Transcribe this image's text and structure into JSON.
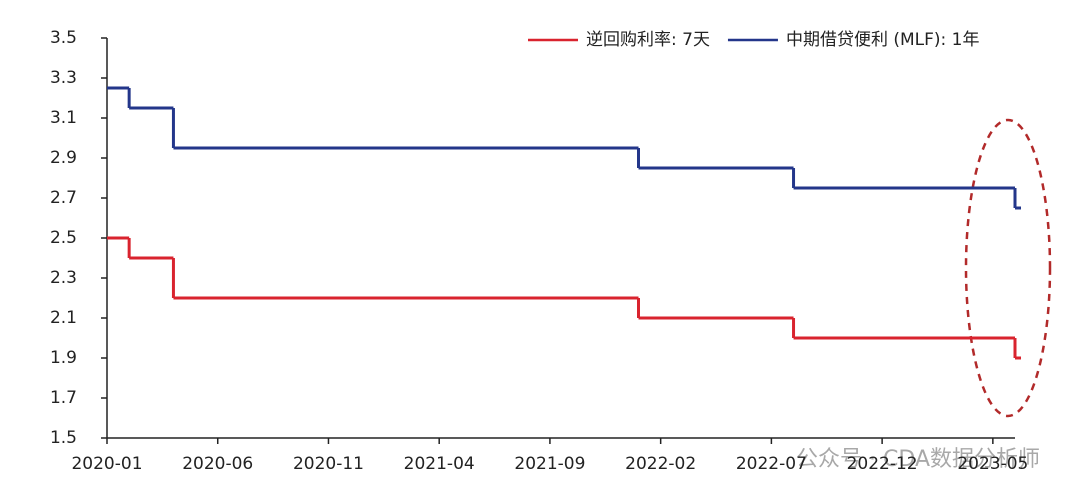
{
  "chart_data": {
    "type": "step",
    "x": [
      "2020-01",
      "2020-02",
      "2020-04",
      "2022-01",
      "2022-08",
      "2023-06"
    ],
    "series": [
      {
        "name": "逆回购利率: 7天",
        "color": "#d9232e",
        "values": [
          2.5,
          2.4,
          2.2,
          2.1,
          2.0,
          1.9
        ]
      },
      {
        "name": "中期借贷便利 (MLF): 1年",
        "color": "#23368a",
        "values": [
          3.25,
          3.15,
          2.95,
          2.85,
          2.75,
          2.65
        ]
      }
    ],
    "xlim": [
      "2020-01",
      "2023-06"
    ],
    "xticks": [
      "2020-01",
      "2020-06",
      "2020-11",
      "2021-04",
      "2021-09",
      "2022-02",
      "2022-07",
      "2022-12",
      "2023-05"
    ],
    "ylim": [
      1.5,
      3.5
    ],
    "yticks": [
      1.5,
      1.7,
      1.9,
      2.1,
      2.3,
      2.5,
      2.7,
      2.9,
      3.1,
      3.3,
      3.5
    ],
    "legend": "top-right",
    "watermark": "公众号 · CDA数据分析师"
  }
}
